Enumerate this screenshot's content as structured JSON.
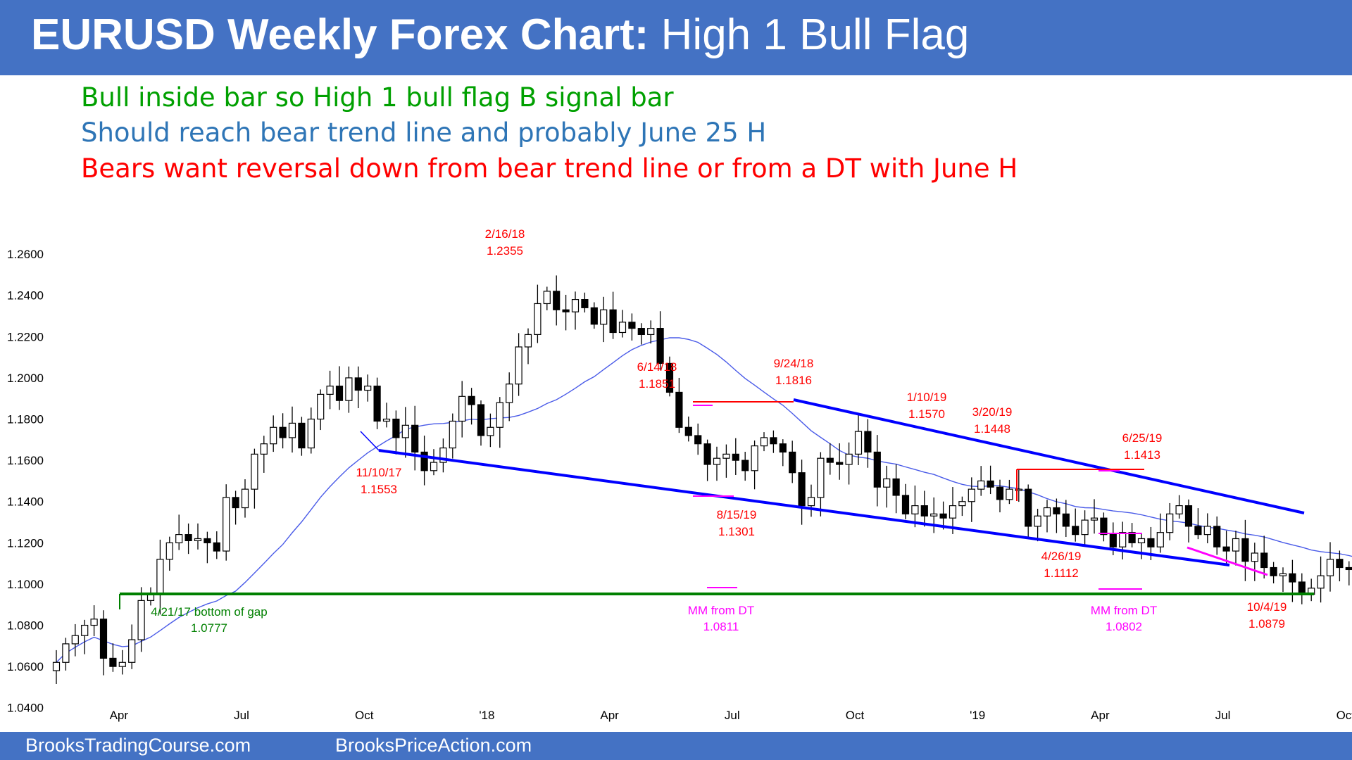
{
  "header": {
    "title_bold": "EURUSD Weekly Forex Chart:",
    "title_rest": "High 1 Bull Flag",
    "bg_color": "#4472c4"
  },
  "commentary": [
    {
      "text": "Bull inside bar so High 1 bull flag B signal bar",
      "color": "#00a000"
    },
    {
      "text": "Should reach bear trend line and probably June 25 H",
      "color": "#2e75b6"
    },
    {
      "text": "Bears want reversal down from bear trend line or from a DT with June H",
      "color": "#ff0000"
    }
  ],
  "footer": {
    "left": "BrooksTradingCourse.com",
    "right": "BrooksPriceAction.com"
  },
  "chart_data": {
    "type": "candlestick",
    "title": "EURUSD Weekly Forex Chart: High 1 Bull Flag",
    "ylim": [
      1.03,
      1.27
    ],
    "y_ticks": [
      "1.2600",
      "1.2400",
      "1.2200",
      "1.2000",
      "1.1800",
      "1.1600",
      "1.1400",
      "1.1200",
      "1.1000",
      "1.0800",
      "1.0600",
      "1.0400"
    ],
    "x_ticks": [
      {
        "label": "Apr",
        "bar": 2
      },
      {
        "label": "Jul",
        "bar": 15
      },
      {
        "label": "Oct",
        "bar": 28
      },
      {
        "label": "'18",
        "bar": 41
      },
      {
        "label": "Apr",
        "bar": 54
      },
      {
        "label": "Jul",
        "bar": 67
      },
      {
        "label": "Oct",
        "bar": 80
      },
      {
        "label": "'19",
        "bar": 93
      },
      {
        "label": "Apr",
        "bar": 106
      },
      {
        "label": "Jul",
        "bar": 119
      },
      {
        "label": "Oct",
        "bar": 132
      }
    ],
    "ma_color": "#4a5be8",
    "closes": [
      1.062,
      1.071,
      1.075,
      1.08,
      1.083,
      1.064,
      1.06,
      1.062,
      1.073,
      1.092,
      1.095,
      1.112,
      1.12,
      1.124,
      1.121,
      1.122,
      1.12,
      1.116,
      1.142,
      1.137,
      1.146,
      1.163,
      1.168,
      1.176,
      1.171,
      1.178,
      1.166,
      1.18,
      1.192,
      1.196,
      1.189,
      1.2,
      1.194,
      1.196,
      1.179,
      1.18,
      1.171,
      1.177,
      1.164,
      1.155,
      1.159,
      1.166,
      1.179,
      1.191,
      1.187,
      1.172,
      1.176,
      1.188,
      1.197,
      1.215,
      1.221,
      1.236,
      1.242,
      1.233,
      1.232,
      1.238,
      1.234,
      1.226,
      1.233,
      1.222,
      1.227,
      1.224,
      1.221,
      1.224,
      1.207,
      1.193,
      1.176,
      1.172,
      1.168,
      1.158,
      1.161,
      1.163,
      1.16,
      1.155,
      1.167,
      1.171,
      1.168,
      1.164,
      1.154,
      1.138,
      1.142,
      1.161,
      1.159,
      1.158,
      1.163,
      1.174,
      1.164,
      1.147,
      1.151,
      1.143,
      1.134,
      1.138,
      1.133,
      1.134,
      1.132,
      1.138,
      1.14,
      1.146,
      1.15,
      1.147,
      1.141,
      1.146,
      1.146,
      1.128,
      1.133,
      1.137,
      1.134,
      1.128,
      1.124,
      1.131,
      1.132,
      1.124,
      1.118,
      1.125,
      1.12,
      1.122,
      1.118,
      1.125,
      1.134,
      1.138,
      1.128,
      1.124,
      1.128,
      1.118,
      1.116,
      1.122,
      1.111,
      1.115,
      1.108,
      1.104,
      1.105,
      1.101,
      1.095,
      1.098,
      1.104,
      1.112,
      1.108,
      1.107,
      1.11
    ],
    "annotations": [
      {
        "label": "2/16/18",
        "value": "1.2355"
      },
      {
        "label": "6/14/18",
        "value": "1.1851"
      },
      {
        "label": "9/24/18",
        "value": "1.1816"
      },
      {
        "label": "1/10/19",
        "value": "1.1570"
      },
      {
        "label": "3/20/19",
        "value": "1.1448"
      },
      {
        "label": "6/25/19",
        "value": "1.1413"
      },
      {
        "label": "11/10/17",
        "value": "1.1553"
      },
      {
        "label": "8/15/19",
        "value": "1.1301"
      },
      {
        "label": "4/26/19",
        "value": "1.1112"
      },
      {
        "label": "10/4/19",
        "value": "1.0879"
      },
      {
        "label": "MM from DT",
        "value": "1.0811"
      },
      {
        "label": "MM from DT",
        "value": "1.0802"
      },
      {
        "label": "4/21/17 bottom of gap",
        "value": "1.0777"
      }
    ],
    "colors": {
      "trend_line": "#0000ff",
      "support": "#008000",
      "resistance": "#ff0000",
      "magenta": "#ff00ff",
      "red_text": "#ff0000",
      "green_text": "#008000"
    }
  }
}
